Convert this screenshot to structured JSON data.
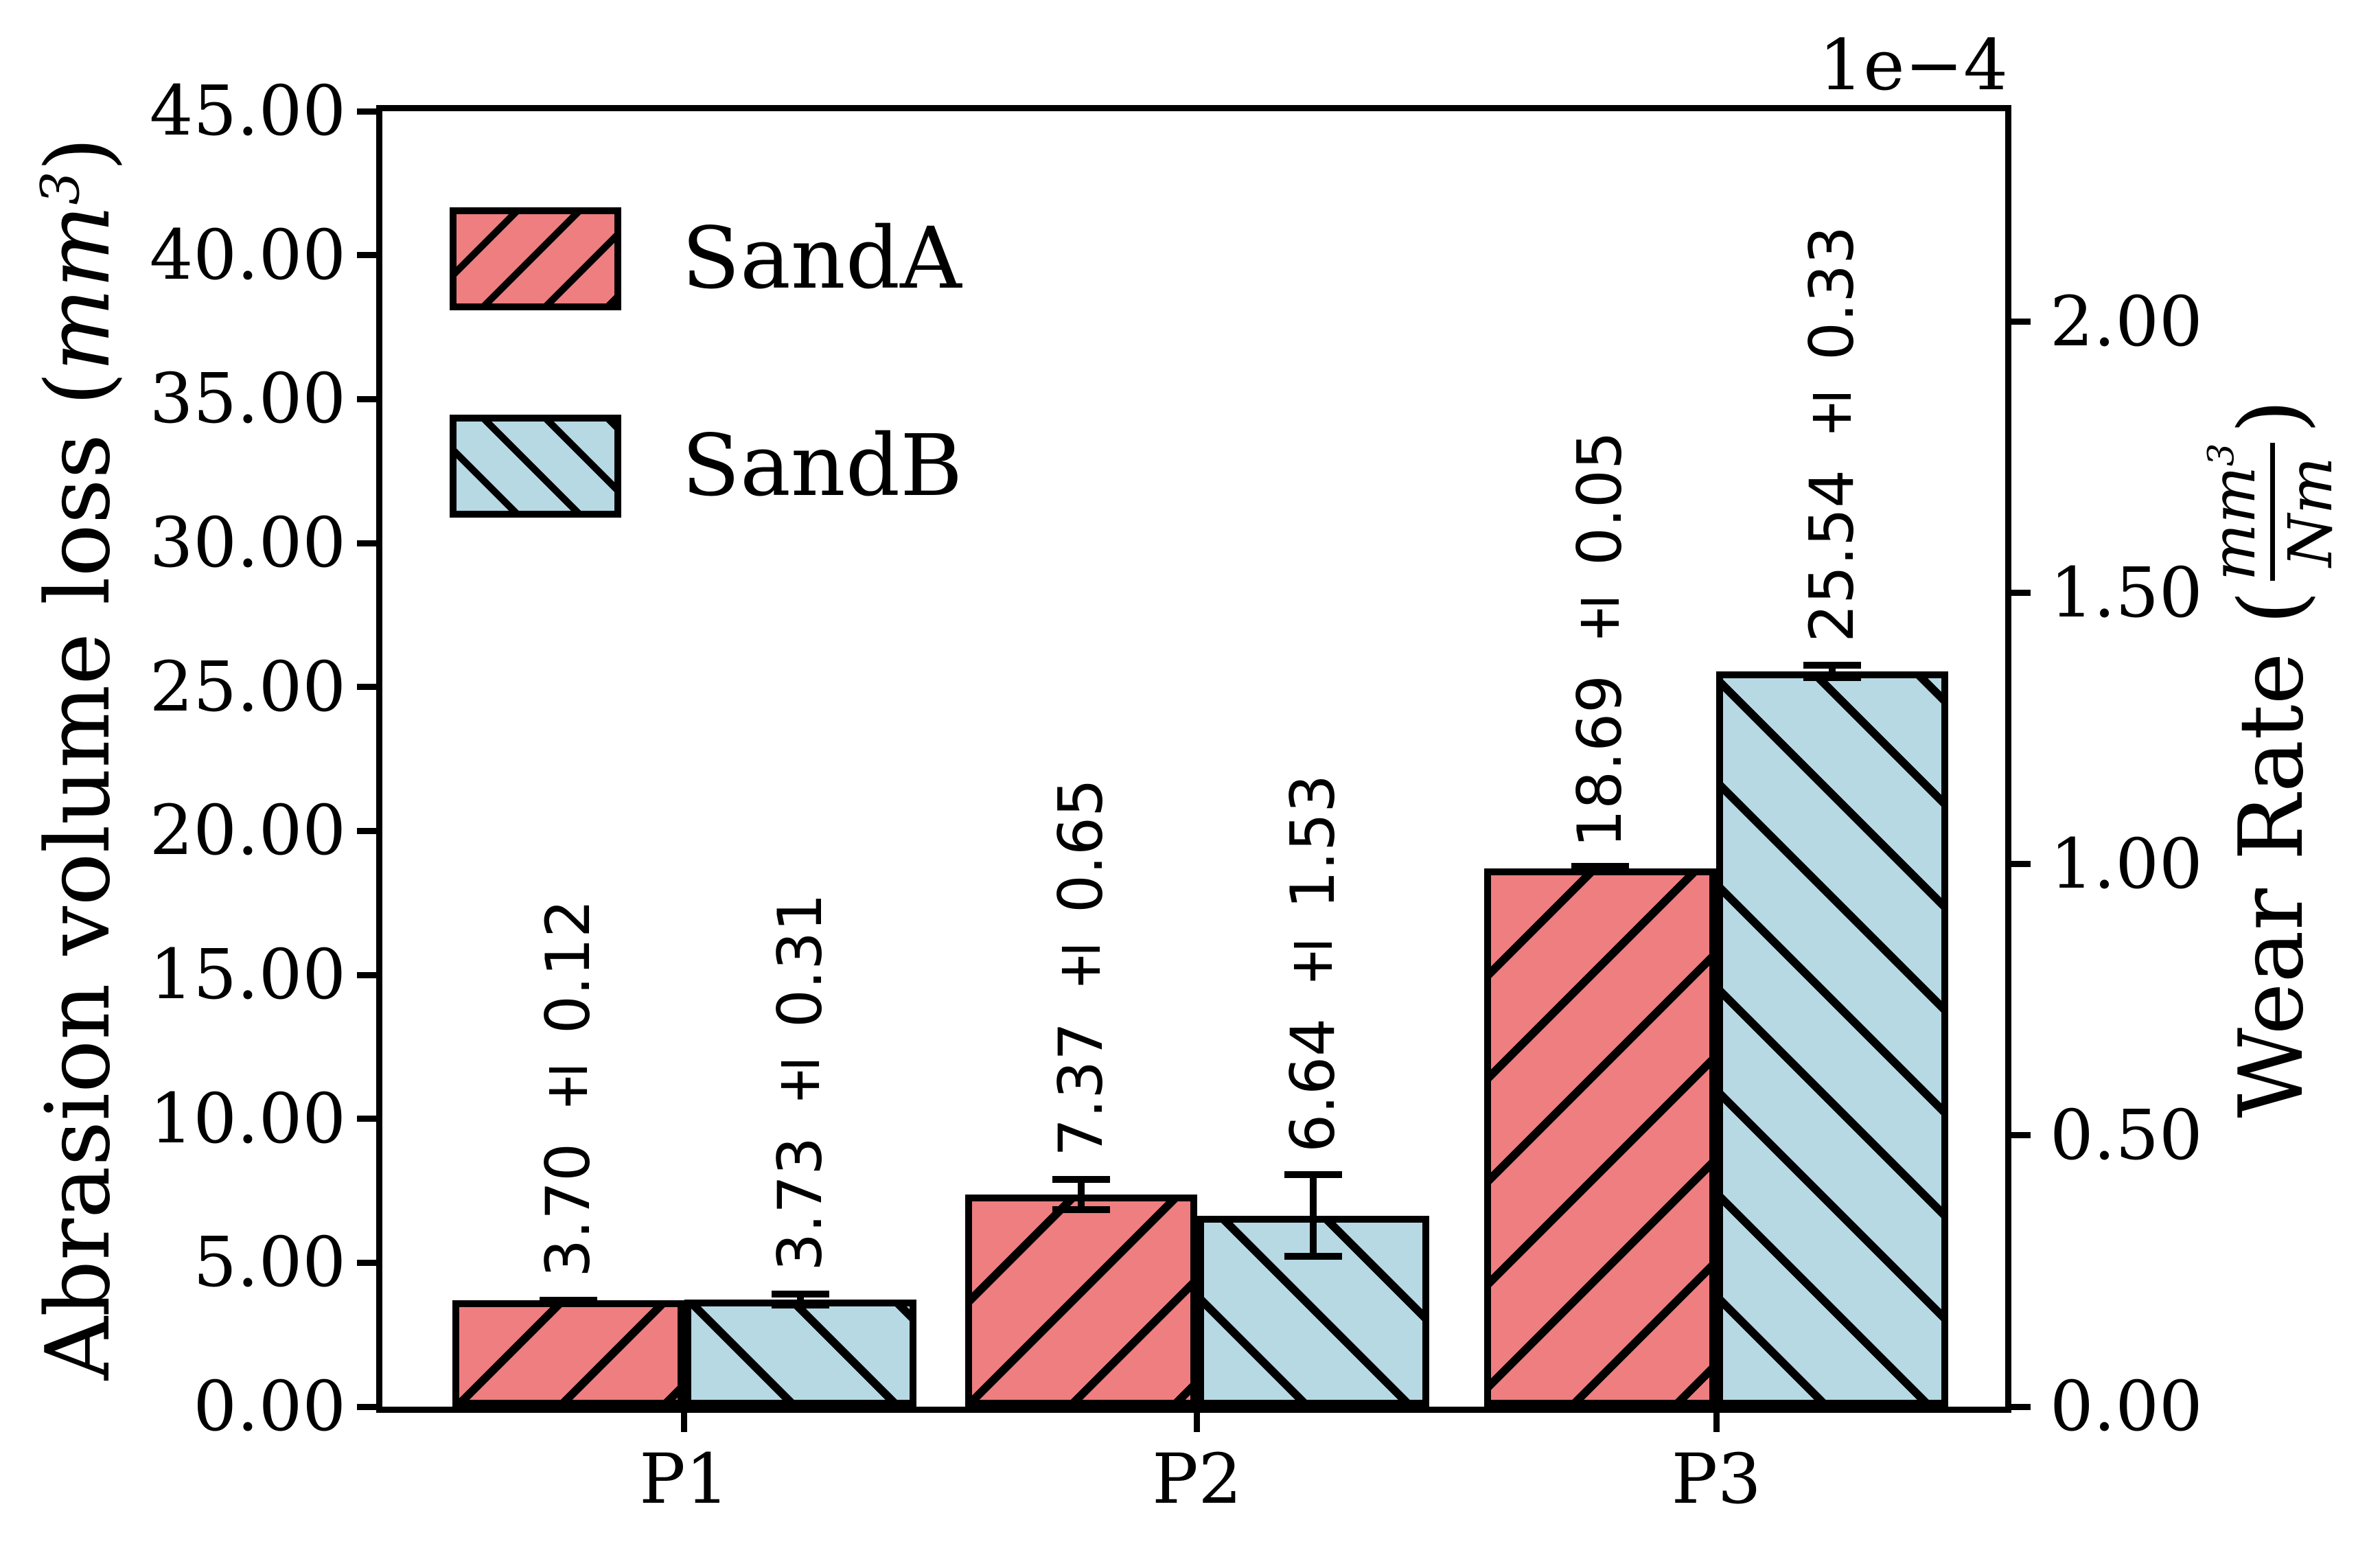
{
  "chart_data": {
    "type": "bar",
    "categories": [
      "P1",
      "P2",
      "P3"
    ],
    "series": [
      {
        "name": "SandA",
        "fill": "#EE7E7F",
        "hatch": "/",
        "values": [
          3.7,
          7.37,
          18.69
        ],
        "errors": [
          0.12,
          0.65,
          0.05
        ],
        "labels": [
          "3.70 ± 0.12",
          "7.37 ± 0.65",
          "18.69 ± 0.05"
        ]
      },
      {
        "name": "SandB",
        "fill": "#B6D9E4",
        "hatch": "\\",
        "values": [
          3.73,
          6.64,
          25.54
        ],
        "errors": [
          0.31,
          1.53,
          0.33
        ],
        "labels": [
          "3.73 ± 0.31",
          "6.64 ± 1.53",
          "25.54 ± 0.33"
        ]
      }
    ],
    "left_axis": {
      "label_prefix": "Abrasion volume loss (",
      "label_math": "mm",
      "label_sup": "3",
      "label_suffix": ")",
      "min": 0,
      "max": 45,
      "tick_values": [
        0,
        5,
        10,
        15,
        20,
        25,
        30,
        35,
        40,
        45
      ],
      "tick_labels": [
        "0.00",
        "5.00",
        "10.00",
        "15.00",
        "20.00",
        "25.00",
        "30.00",
        "35.00",
        "40.00",
        "45.00"
      ]
    },
    "right_axis": {
      "label_prefix": "Wear Rate (",
      "frac_num": "mm",
      "frac_num_sup": "3",
      "frac_den": "Nm",
      "label_suffix": ")",
      "offset_text": "1e−4",
      "min": 0,
      "max": 2.388,
      "tick_values": [
        0,
        0.5,
        1.0,
        1.5,
        2.0
      ],
      "tick_labels": [
        "0.00",
        "0.50",
        "1.00",
        "1.50",
        "2.00"
      ]
    },
    "legend": {
      "items": [
        "SandA",
        "SandB"
      ],
      "position": "upper left",
      "frame": false
    },
    "grid": false,
    "title": "",
    "xlabel": "",
    "bar_edge_color": "#000000"
  }
}
